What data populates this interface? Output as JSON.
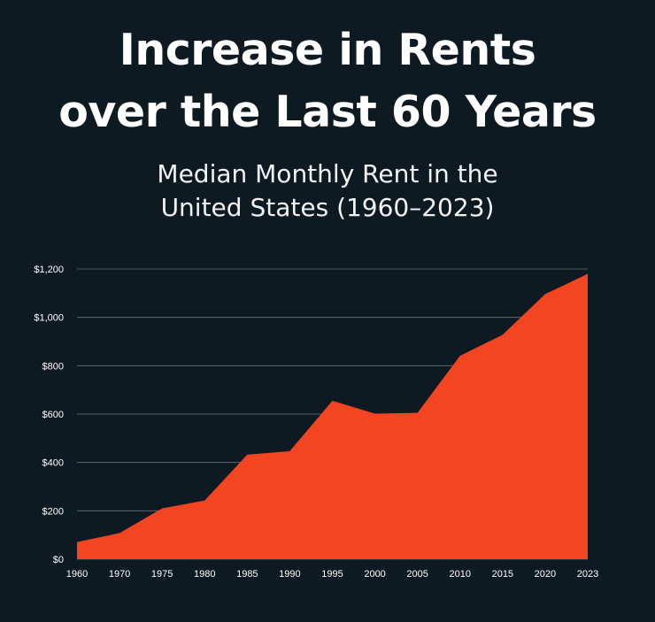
{
  "title_line1": "Increase in Rents",
  "title_line2": "over the Last 60 Years",
  "subtitle_line1": "Median Monthly Rent in the",
  "subtitle_line2": "United States (1960–2023)",
  "chart_data": {
    "type": "area",
    "title": "Increase in Rents over the Last 60 Years",
    "subtitle": "Median Monthly Rent in the United States (1960–2023)",
    "x": [
      1960,
      1970,
      1975,
      1980,
      1985,
      1990,
      1995,
      2000,
      2005,
      2010,
      2015,
      2020,
      2023
    ],
    "x_tick_labels": [
      "1960",
      "1970",
      "1975",
      "1980",
      "1985",
      "1990",
      "1995",
      "2000",
      "2005",
      "2010",
      "2015",
      "2020",
      "2023"
    ],
    "values": [
      71,
      108,
      210,
      243,
      432,
      447,
      655,
      602,
      605,
      841,
      928,
      1096,
      1180
    ],
    "y_ticks": [
      0,
      200,
      400,
      600,
      800,
      1000,
      1200
    ],
    "y_tick_labels": [
      "$0",
      "$200",
      "$400",
      "$600",
      "$800",
      "$1,000",
      "$1,200"
    ],
    "ylim": [
      0,
      1200
    ],
    "grid": true,
    "xlabel": "",
    "ylabel": "",
    "fill_color": "#f44522",
    "grid_color": "#6a737a",
    "background_color": "#0e1a22"
  }
}
